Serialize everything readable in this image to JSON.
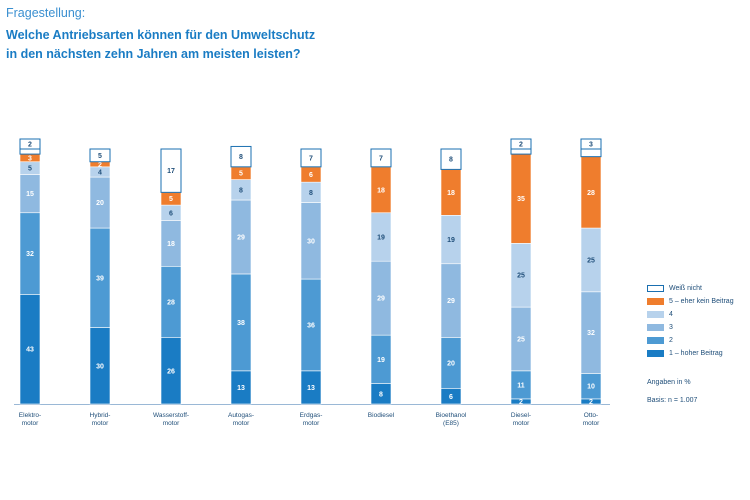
{
  "header": {
    "question_label": "Fragestellung:",
    "title": "Welche Antriebsarten können für den Umweltschutz\nin den nächsten zehn Jahren am meisten leisten?"
  },
  "notes": {
    "unit": "Angaben in %",
    "basis": "Basis: n = 1.007"
  },
  "colors": {
    "weiss_nicht": "#ffffff",
    "level5": "#ef7d2d",
    "level4": "#b7d2ec",
    "level3": "#8fb9e0",
    "level2": "#4d9ad3",
    "level1": "#1a7cc4",
    "outline": "#1a6fb0"
  },
  "chart_data": {
    "type": "bar",
    "stacked": true,
    "normalized_percent": true,
    "categories": [
      "Elektro-\nmotor",
      "Hybrid-\nmotor",
      "Wasserstoff-\nmotor",
      "Autogas-\nmotor",
      "Erdgas-\nmotor",
      "Biodiesel",
      "Bioethanol\n(E85)",
      "Diesel-\nmotor",
      "Otto-\nmotor"
    ],
    "series": [
      {
        "name": "1 – hoher Beitrag",
        "key": "level1",
        "values": [
          43,
          30,
          26,
          13,
          13,
          8,
          6,
          2,
          2
        ]
      },
      {
        "name": "2",
        "key": "level2",
        "values": [
          32,
          39,
          28,
          38,
          36,
          19,
          20,
          11,
          10
        ]
      },
      {
        "name": "3",
        "key": "level3",
        "values": [
          15,
          20,
          18,
          29,
          30,
          29,
          29,
          25,
          32
        ]
      },
      {
        "name": "4",
        "key": "level4",
        "values": [
          5,
          4,
          6,
          8,
          8,
          19,
          19,
          25,
          25
        ]
      },
      {
        "name": "5 – eher kein Beitrag",
        "key": "level5",
        "values": [
          3,
          2,
          5,
          5,
          6,
          18,
          18,
          35,
          28
        ]
      },
      {
        "name": "Weiß nicht",
        "key": "weiss_nicht",
        "values": [
          2,
          5,
          17,
          8,
          7,
          7,
          8,
          2,
          3
        ]
      }
    ],
    "legend": {
      "position": "right",
      "order": [
        "Weiß nicht",
        "5 – eher kein Beitrag",
        "4",
        "3",
        "2",
        "1 – hoher Beitrag"
      ]
    },
    "ylim": [
      0,
      100
    ],
    "grid": false
  }
}
